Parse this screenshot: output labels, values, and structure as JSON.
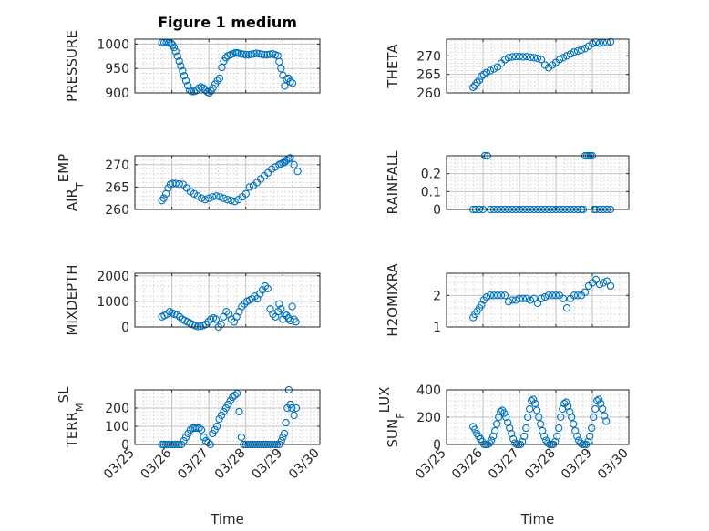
{
  "figure_title": "Figure 1 medium",
  "chart_data": [
    {
      "type": "scatter",
      "title": "Figure 1 medium",
      "xlabel": "",
      "ylabel": "PRESSURE",
      "xlim": [
        "03/25",
        "03/30"
      ],
      "ylim": [
        900,
        1010
      ],
      "yticks": [
        900,
        950,
        1000
      ],
      "yticklabels": [
        "900",
        "950",
        "1000"
      ],
      "grid": true,
      "color": "#0072BD",
      "x": [
        25.73,
        25.79,
        25.85,
        25.92,
        25.98,
        26.02,
        26.06,
        26.1,
        26.15,
        26.2,
        26.24,
        26.29,
        26.33,
        26.38,
        26.43,
        26.48,
        26.53,
        26.6,
        26.67,
        26.73,
        26.79,
        26.85,
        26.9,
        26.96,
        27.01,
        27.06,
        27.11,
        27.17,
        27.23,
        27.29,
        27.35,
        27.4,
        27.46,
        27.51,
        27.58,
        27.65,
        27.72,
        27.76,
        27.8,
        27.87,
        27.94,
        28.01,
        28.08,
        28.15,
        28.22,
        28.29,
        28.36,
        28.43,
        28.5,
        28.58,
        28.65,
        28.72,
        28.79,
        28.86,
        28.9,
        28.95,
        29.0,
        29.05,
        29.1,
        29.15,
        29.2,
        29.26
      ],
      "y": [
        1003,
        1003,
        1003,
        1002,
        1001,
        998,
        993,
        985,
        975,
        965,
        955,
        945,
        935,
        925,
        915,
        906,
        903,
        903,
        905,
        910,
        912,
        910,
        906,
        902,
        900,
        904,
        910,
        918,
        925,
        930,
        952,
        965,
        972,
        976,
        978,
        980,
        982,
        982,
        981,
        980,
        979,
        978,
        978,
        979,
        980,
        981,
        980,
        979,
        978,
        978,
        979,
        980,
        978,
        976,
        964,
        950,
        936,
        914,
        928,
        930,
        923,
        920
      ]
    },
    {
      "type": "scatter",
      "title": "",
      "xlabel": "",
      "ylabel": "THETA",
      "xlim": [
        "03/25",
        "03/30"
      ],
      "ylim": [
        260,
        274.5
      ],
      "yticks": [
        260,
        265,
        270
      ],
      "yticklabels": [
        "260",
        "265",
        "270"
      ],
      "grid": true,
      "color": "#0072BD",
      "x": [
        25.73,
        25.78,
        25.84,
        25.9,
        25.96,
        26.02,
        26.1,
        26.2,
        26.3,
        26.4,
        26.5,
        26.6,
        26.7,
        26.8,
        26.9,
        27.0,
        27.1,
        27.2,
        27.3,
        27.4,
        27.5,
        27.6,
        27.7,
        27.8,
        27.9,
        28.0,
        28.1,
        28.2,
        28.3,
        28.4,
        28.5,
        28.6,
        28.7,
        28.8,
        28.9,
        29.0,
        29.1,
        29.2,
        29.3,
        29.4,
        29.5
      ],
      "y": [
        261.5,
        262,
        262.8,
        263.5,
        264.5,
        265,
        265.5,
        266,
        266.5,
        267,
        268,
        269,
        269.5,
        269.7,
        269.8,
        269.8,
        269.7,
        269.8,
        269.6,
        269.5,
        269.3,
        269,
        267.5,
        266.8,
        267.5,
        268.2,
        269,
        269.5,
        270,
        270.5,
        271,
        271.3,
        271.6,
        272,
        272.6,
        273.3,
        273.7,
        273.4,
        273.5,
        273.6,
        273.8
      ]
    },
    {
      "type": "scatter",
      "title": "",
      "xlabel": "",
      "ylabel": "AIR_TEMP",
      "xlim": [
        "03/25",
        "03/30"
      ],
      "ylim": [
        260,
        272
      ],
      "yticks": [
        260,
        265,
        270
      ],
      "yticklabels": [
        "260",
        "265",
        "270"
      ],
      "grid": true,
      "color": "#0072BD",
      "x": [
        25.73,
        25.78,
        25.84,
        25.9,
        25.96,
        26.02,
        26.1,
        26.2,
        26.3,
        26.4,
        26.5,
        26.6,
        26.7,
        26.8,
        26.9,
        27.0,
        27.1,
        27.2,
        27.3,
        27.4,
        27.5,
        27.6,
        27.7,
        27.8,
        27.9,
        28.0,
        28.1,
        28.2,
        28.3,
        28.4,
        28.5,
        28.6,
        28.7,
        28.8,
        28.9,
        28.95,
        29.0,
        29.05,
        29.1,
        29.15,
        29.2,
        29.3,
        29.4
      ],
      "y": [
        262,
        262.5,
        263.5,
        264.8,
        265.6,
        265.8,
        265.8,
        265.7,
        265.6,
        264.8,
        264,
        263.5,
        263,
        262.5,
        262.2,
        262.5,
        262.8,
        263,
        262.8,
        262.5,
        262.2,
        262,
        261.8,
        262.2,
        262.8,
        263.5,
        265,
        265.3,
        266,
        266.8,
        267.5,
        268.2,
        269,
        269.5,
        270,
        270.2,
        270.4,
        270.5,
        271,
        271.3,
        271.5,
        270,
        268.5
      ]
    },
    {
      "type": "scatter",
      "title": "",
      "xlabel": "",
      "ylabel": "RAINFALL",
      "xlim": [
        "03/25",
        "03/30"
      ],
      "ylim": [
        0,
        0.3
      ],
      "yticks": [
        0,
        0.1,
        0.2
      ],
      "yticklabels": [
        "0",
        "0.1",
        "0.2"
      ],
      "grid": true,
      "color": "#0072BD",
      "x": [
        25.73,
        25.8,
        25.9,
        26.0,
        26.05,
        26.12,
        26.2,
        26.3,
        26.4,
        26.5,
        26.6,
        26.7,
        26.8,
        26.9,
        27.0,
        27.1,
        27.2,
        27.3,
        27.4,
        27.5,
        27.6,
        27.7,
        27.8,
        27.9,
        28.0,
        28.1,
        28.2,
        28.3,
        28.4,
        28.5,
        28.6,
        28.7,
        28.75,
        28.8,
        28.85,
        28.9,
        28.95,
        29.0,
        29.05,
        29.1,
        29.2,
        29.3,
        29.4,
        29.5
      ],
      "y": [
        0,
        0,
        0,
        0,
        0.3,
        0.3,
        0,
        0,
        0,
        0,
        0,
        0,
        0,
        0,
        0,
        0,
        0,
        0,
        0,
        0,
        0,
        0,
        0,
        0,
        0,
        0,
        0,
        0,
        0,
        0,
        0,
        0,
        0,
        0.3,
        0.3,
        0.3,
        0.3,
        0.3,
        0,
        0,
        0,
        0,
        0,
        0
      ]
    },
    {
      "type": "scatter",
      "title": "",
      "xlabel": "",
      "ylabel": "MIXDEPTH",
      "xlim": [
        "03/25",
        "03/30"
      ],
      "ylim": [
        0,
        2100
      ],
      "yticks": [
        0,
        1000,
        2000
      ],
      "yticklabels": [
        "0",
        "1000",
        "2000"
      ],
      "grid": true,
      "color": "#0072BD",
      "x": [
        25.73,
        25.8,
        25.87,
        25.94,
        26.0,
        26.07,
        26.14,
        26.21,
        26.28,
        26.35,
        26.42,
        26.49,
        26.56,
        26.63,
        26.7,
        26.77,
        26.84,
        26.91,
        26.98,
        27.05,
        27.12,
        27.19,
        27.26,
        27.33,
        27.4,
        27.47,
        27.54,
        27.61,
        27.68,
        27.75,
        27.82,
        27.89,
        27.96,
        28.03,
        28.1,
        28.17,
        28.24,
        28.31,
        28.38,
        28.45,
        28.52,
        28.59,
        28.66,
        28.73,
        28.8,
        28.87,
        28.9,
        28.95,
        29.0,
        29.05,
        29.1,
        29.15,
        29.2,
        29.25,
        29.3,
        29.35
      ],
      "y": [
        400,
        450,
        500,
        600,
        550,
        500,
        480,
        400,
        300,
        250,
        200,
        150,
        100,
        50,
        20,
        30,
        50,
        100,
        200,
        300,
        350,
        300,
        0,
        100,
        400,
        600,
        500,
        300,
        200,
        400,
        600,
        800,
        900,
        1000,
        1050,
        1100,
        1200,
        1100,
        1300,
        1450,
        1600,
        1500,
        700,
        500,
        400,
        600,
        900,
        700,
        300,
        500,
        450,
        350,
        250,
        800,
        300,
        200
      ]
    },
    {
      "type": "scatter",
      "title": "",
      "xlabel": "",
      "ylabel": "H2OMIXRA",
      "xlim": [
        "03/25",
        "03/30"
      ],
      "ylim": [
        1,
        2.7
      ],
      "yticks": [
        1,
        2
      ],
      "yticklabels": [
        "1",
        "2"
      ],
      "grid": true,
      "color": "#0072BD",
      "x": [
        25.73,
        25.78,
        25.84,
        25.9,
        25.96,
        26.02,
        26.1,
        26.2,
        26.3,
        26.4,
        26.5,
        26.6,
        26.7,
        26.8,
        26.9,
        27.0,
        27.1,
        27.2,
        27.3,
        27.4,
        27.5,
        27.6,
        27.7,
        27.8,
        27.9,
        28.0,
        28.1,
        28.2,
        28.3,
        28.4,
        28.5,
        28.6,
        28.7,
        28.8,
        28.9,
        29.0,
        29.1,
        29.2,
        29.3,
        29.4,
        29.5
      ],
      "y": [
        1.3,
        1.4,
        1.5,
        1.6,
        1.7,
        1.85,
        1.95,
        2.0,
        2.0,
        2.0,
        2.0,
        2.0,
        1.8,
        1.85,
        1.85,
        1.9,
        1.9,
        1.9,
        1.85,
        1.9,
        1.75,
        1.9,
        1.95,
        2.0,
        2.0,
        2.0,
        2.0,
        1.9,
        1.6,
        1.9,
        2.0,
        2.0,
        2.0,
        2.1,
        2.3,
        2.4,
        2.5,
        2.35,
        2.4,
        2.45,
        2.3
      ]
    },
    {
      "type": "scatter",
      "title": "",
      "xlabel": "Time",
      "ylabel": "TERR_MSL",
      "xlim": [
        "03/25",
        "03/30"
      ],
      "ylim": [
        0,
        300
      ],
      "yticks": [
        0,
        100,
        200
      ],
      "yticklabels": [
        "0",
        "100",
        "200"
      ],
      "xticks": [
        "03/25",
        "03/26",
        "03/27",
        "03/28",
        "03/29",
        "03/30"
      ],
      "grid": true,
      "color": "#0072BD",
      "x": [
        25.73,
        25.78,
        25.84,
        25.9,
        25.96,
        26.02,
        26.08,
        26.14,
        26.2,
        26.26,
        26.32,
        26.38,
        26.44,
        26.5,
        26.56,
        26.62,
        26.68,
        26.74,
        26.8,
        26.86,
        26.92,
        26.98,
        27.04,
        27.1,
        27.16,
        27.22,
        27.28,
        27.34,
        27.4,
        27.46,
        27.52,
        27.58,
        27.64,
        27.7,
        27.76,
        27.82,
        27.88,
        27.94,
        28.0,
        28.06,
        28.12,
        28.18,
        28.24,
        28.3,
        28.36,
        28.42,
        28.48,
        28.54,
        28.6,
        28.66,
        28.72,
        28.78,
        28.84,
        28.9,
        28.96,
        29.0,
        29.04,
        29.08,
        29.12,
        29.16,
        29.2,
        29.24,
        29.3,
        29.36
      ],
      "y": [
        0,
        0,
        0,
        0,
        0,
        0,
        0,
        0,
        0,
        0,
        20,
        40,
        60,
        80,
        90,
        90,
        90,
        90,
        80,
        40,
        20,
        10,
        0,
        60,
        80,
        100,
        140,
        160,
        180,
        200,
        220,
        240,
        260,
        270,
        280,
        180,
        40,
        0,
        0,
        0,
        0,
        0,
        0,
        0,
        0,
        0,
        0,
        0,
        0,
        0,
        0,
        0,
        0,
        0,
        20,
        40,
        60,
        120,
        200,
        300,
        220,
        200,
        160,
        200
      ]
    },
    {
      "type": "scatter",
      "title": "",
      "xlabel": "Time",
      "ylabel": "SUN_FLUX",
      "xlim": [
        "03/25",
        "03/30"
      ],
      "ylim": [
        0,
        400
      ],
      "yticks": [
        0,
        200,
        400
      ],
      "yticklabels": [
        "0",
        "200",
        "400"
      ],
      "xticks": [
        "03/25",
        "03/26",
        "03/27",
        "03/28",
        "03/29",
        "03/30"
      ],
      "grid": true,
      "color": "#0072BD",
      "x": [
        25.73,
        25.78,
        25.83,
        25.88,
        25.93,
        25.98,
        26.03,
        26.08,
        26.13,
        26.18,
        26.23,
        26.28,
        26.33,
        26.38,
        26.43,
        26.48,
        26.53,
        26.58,
        26.63,
        26.68,
        26.73,
        26.78,
        26.83,
        26.88,
        26.93,
        26.98,
        27.03,
        27.08,
        27.13,
        27.18,
        27.23,
        27.28,
        27.33,
        27.38,
        27.43,
        27.48,
        27.53,
        27.58,
        27.63,
        27.68,
        27.73,
        27.78,
        27.83,
        27.88,
        27.93,
        27.98,
        28.03,
        28.08,
        28.13,
        28.18,
        28.23,
        28.28,
        28.33,
        28.38,
        28.43,
        28.48,
        28.53,
        28.58,
        28.63,
        28.68,
        28.73,
        28.78,
        28.83,
        28.88,
        28.93,
        28.98,
        29.03,
        29.08,
        29.13,
        29.18,
        29.23,
        29.28,
        29.33,
        29.38
      ],
      "y": [
        130,
        110,
        80,
        60,
        40,
        20,
        0,
        0,
        0,
        10,
        30,
        60,
        100,
        150,
        200,
        240,
        250,
        230,
        200,
        160,
        120,
        80,
        40,
        10,
        0,
        0,
        0,
        20,
        60,
        120,
        200,
        260,
        320,
        330,
        300,
        250,
        200,
        150,
        100,
        60,
        30,
        10,
        0,
        0,
        0,
        20,
        60,
        120,
        200,
        260,
        300,
        310,
        280,
        240,
        200,
        150,
        100,
        60,
        30,
        10,
        0,
        0,
        0,
        20,
        60,
        120,
        200,
        260,
        320,
        330,
        300,
        260,
        210,
        170
      ]
    }
  ]
}
